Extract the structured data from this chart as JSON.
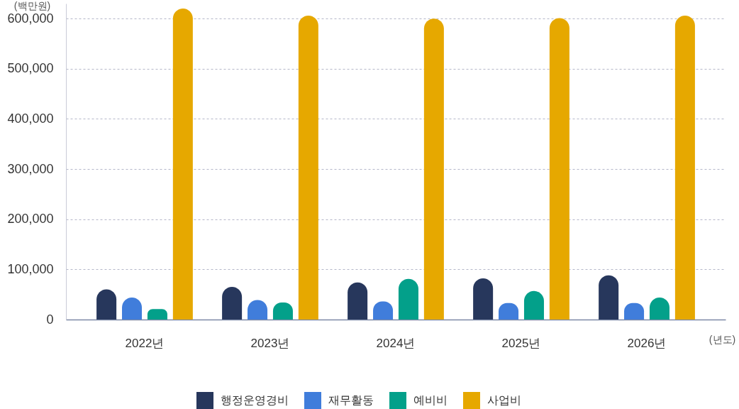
{
  "chart_data": {
    "type": "bar",
    "ylabel": "(백만원)",
    "xlabel": "(년도)",
    "categories": [
      "2022년",
      "2023년",
      "2024년",
      "2025년",
      "2026년"
    ],
    "series": [
      {
        "name": "행정운영경비",
        "color": "#27375c",
        "values": [
          60000,
          65000,
          74000,
          82000,
          88000
        ]
      },
      {
        "name": "재무활동",
        "color": "#407ddb",
        "values": [
          44000,
          39000,
          36000,
          33000,
          33000
        ]
      },
      {
        "name": "예비비",
        "color": "#03a08a",
        "values": [
          21000,
          34000,
          81000,
          57000,
          44000
        ]
      },
      {
        "name": "사업비",
        "color": "#e6a800",
        "values": [
          620000,
          606000,
          600000,
          601000,
          606000
        ]
      }
    ],
    "ylim": [
      0,
      630000
    ],
    "yticks": [
      0,
      {
        "value": 100000,
        "label": "100,000"
      },
      {
        "value": 200000,
        "label": "200,000"
      },
      {
        "value": 300000,
        "label": "300,000"
      },
      {
        "value": 400000,
        "label": "400,000"
      },
      {
        "value": 500000,
        "label": "500,000"
      },
      {
        "value": 600000,
        "label": "600,000"
      }
    ],
    "grid": "y",
    "legend": "bottom"
  }
}
